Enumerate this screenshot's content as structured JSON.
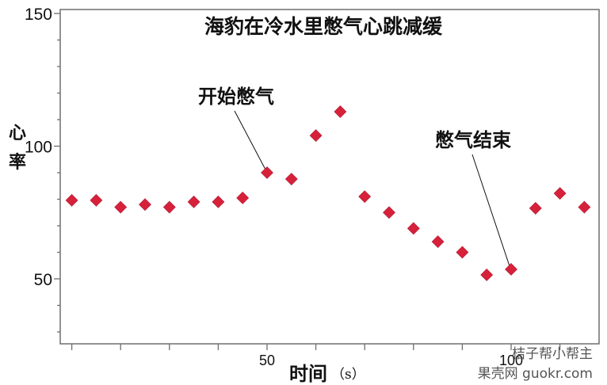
{
  "chart_data": {
    "type": "scatter",
    "title": "海豹在冷水里憋气心跳减缓",
    "xlabel": "时间",
    "xlabel_unit": "（s）",
    "ylabel": "心率",
    "xlim": [
      7.7,
      118
    ],
    "ylim": [
      25,
      150
    ],
    "y_ticks_labeled": [
      50,
      100,
      150
    ],
    "x_ticks_labeled": [
      50,
      100
    ],
    "grid": false,
    "marker": "diamond",
    "marker_color": "#d7213b",
    "series": [
      {
        "name": "心率",
        "x": [
          10,
          15,
          20,
          25,
          30,
          35,
          40,
          45,
          50,
          55,
          60,
          65,
          70,
          75,
          80,
          85,
          90,
          95,
          100,
          105,
          110,
          115
        ],
        "y": [
          79.6,
          79.6,
          77,
          78,
          77,
          79,
          79,
          80.5,
          90,
          87.6,
          104,
          113,
          81,
          75,
          69,
          64,
          60,
          51.5,
          53.6,
          76.6,
          82.2,
          77
        ]
      }
    ],
    "annotations": [
      {
        "text": "开始憋气",
        "point_x": 50,
        "point_y": 90
      },
      {
        "text": "憋气结束",
        "point_x": 100,
        "point_y": 53.6
      }
    ]
  },
  "watermark": {
    "line1": "桔子帮小帮主",
    "line2": "果壳网 guokr.com"
  },
  "colors": {
    "axis": "#6e6e6e",
    "marker": "#d7213b",
    "text": "#111111"
  }
}
